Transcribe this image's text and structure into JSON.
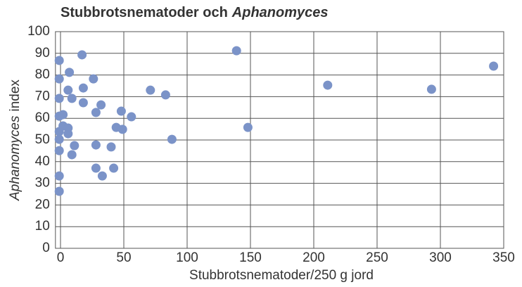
{
  "chart_data": {
    "type": "scatter",
    "title": [
      "Stubbrotsnematoder och",
      "Aphanomyces"
    ],
    "x_label": "Stubbrotsnematoder/250 g jord",
    "y_label": [
      "Aphanomyces",
      "index"
    ],
    "color": "#7b93c8",
    "grid": true,
    "xlim": [
      -4,
      350
    ],
    "xticks": [
      0,
      50,
      100,
      150,
      200,
      250,
      300,
      350
    ],
    "ylim": [
      0,
      100
    ],
    "yticks": [
      0,
      10,
      20,
      30,
      40,
      50,
      60,
      70,
      80,
      90,
      100
    ],
    "x": [
      -1,
      -1,
      -1,
      -1,
      -1,
      -1,
      -1,
      -1,
      -1,
      2,
      2,
      6,
      6,
      6,
      7,
      9,
      11,
      9,
      17,
      18,
      18,
      26,
      28,
      28,
      28,
      32,
      33,
      40,
      42,
      44,
      48,
      49,
      56,
      71,
      83,
      88,
      139,
      148,
      211,
      293,
      342
    ],
    "values": [
      86.7,
      78.2,
      69.2,
      61,
      53.9,
      50.3,
      45.1,
      33.4,
      26.3,
      61.7,
      56.5,
      55.5,
      52.9,
      73,
      81.2,
      69.2,
      47.4,
      43.2,
      89.3,
      74,
      67.2,
      78.2,
      62.7,
      47.7,
      37,
      66.2,
      33.4,
      46.8,
      37,
      55.8,
      63.3,
      54.9,
      60.7,
      73,
      70.8,
      50.3,
      91.2,
      55.8,
      75.3,
      73.4,
      84.1
    ]
  }
}
